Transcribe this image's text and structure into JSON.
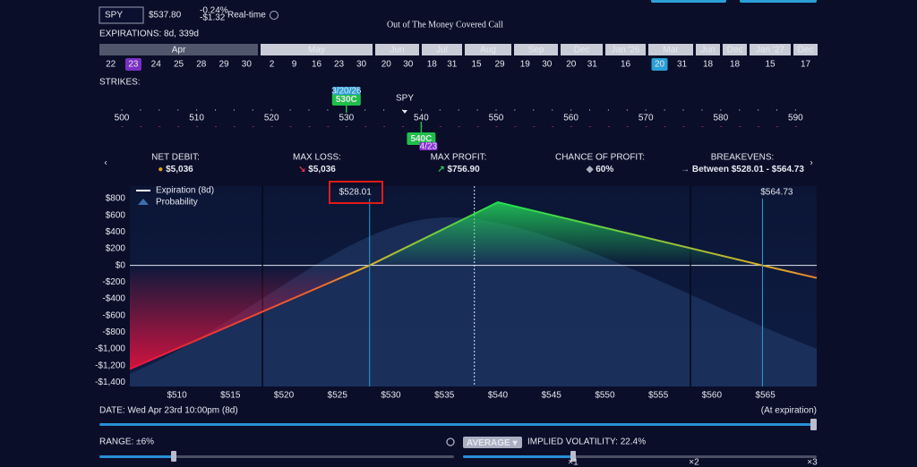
{
  "header": {
    "symbol": "SPY",
    "price": "$537.80",
    "change_pct": "-0.24%",
    "change": "-$1.32",
    "feed": "Real-time",
    "title": "Out of The Money Covered Call"
  },
  "expirations": {
    "label": "EXPIRATIONS: 8d, 339d",
    "months": [
      {
        "label": "Apr",
        "dates": [
          "22",
          "23",
          "24",
          "25",
          "28",
          "29",
          "30"
        ],
        "selected": 1,
        "selected_color": "#7b2fc4"
      },
      {
        "label": "May",
        "dates": [
          "2",
          "9",
          "16",
          "23",
          "30"
        ]
      },
      {
        "label": "Jun",
        "dates": [
          "20",
          "30"
        ]
      },
      {
        "label": "Jul",
        "dates": [
          "18",
          "31"
        ]
      },
      {
        "label": "Aug",
        "dates": [
          "15",
          "29"
        ]
      },
      {
        "label": "Sep",
        "dates": [
          "19",
          "30"
        ]
      },
      {
        "label": "Dec",
        "dates": [
          "20",
          "31"
        ]
      },
      {
        "label": "Jan '26",
        "dates": [
          "16"
        ]
      },
      {
        "label": "Mar",
        "dates": [
          "20",
          "31"
        ],
        "selected": 0,
        "selected_color": "#2a9fd6"
      },
      {
        "label": "Jun",
        "dates": [
          "18"
        ]
      },
      {
        "label": "Dec",
        "dates": [
          "18"
        ]
      },
      {
        "label": "Jan '27",
        "dates": [
          "15"
        ]
      },
      {
        "label": "Dec",
        "dates": [
          "17"
        ]
      }
    ]
  },
  "strikes": {
    "label": "STRIKES:",
    "ticks": [
      500,
      510,
      520,
      530,
      540,
      550,
      560,
      570,
      580,
      590
    ],
    "price": 537.8,
    "price_label": "SPY",
    "legs": [
      {
        "label": "530C",
        "strike": 530,
        "tag": "3/20/26",
        "side": "top"
      },
      {
        "label": "540C",
        "strike": 540,
        "tag": "4/23",
        "side": "bottom"
      }
    ]
  },
  "stats": [
    {
      "label": "NET DEBIT:",
      "value": "$5,036"
    },
    {
      "label": "MAX LOSS:",
      "value": "$5,036"
    },
    {
      "label": "MAX PROFIT:",
      "value": "$756.90"
    },
    {
      "label": "CHANCE OF PROFIT:",
      "value": "60%"
    },
    {
      "label": "BREAKEVENS:",
      "value": "Between $528.01 - $564.73"
    }
  ],
  "chart": {
    "type": "line",
    "legend": [
      "Expiration (8d)",
      "Probability"
    ],
    "x": [
      505.6,
      528.01,
      540,
      564.73,
      569.8
    ],
    "values": [
      -1240,
      0,
      756.9,
      0,
      -150
    ],
    "xlim": [
      505.6,
      569.8
    ],
    "ylim": [
      -1450,
      950
    ],
    "xticks": [
      {
        "value": 510,
        "label": "$510"
      },
      {
        "value": 515,
        "label": "$515"
      },
      {
        "value": 520,
        "label": "$520"
      },
      {
        "value": 525,
        "label": "$525"
      },
      {
        "value": 530,
        "label": "$530"
      },
      {
        "value": 535,
        "label": "$535"
      },
      {
        "value": 540,
        "label": "$540"
      },
      {
        "value": 545,
        "label": "$545"
      },
      {
        "value": 550,
        "label": "$550"
      },
      {
        "value": 555,
        "label": "$555"
      },
      {
        "value": 560,
        "label": "$560"
      },
      {
        "value": 565,
        "label": "$565"
      }
    ],
    "yticks": [
      {
        "value": 800,
        "label": "$800"
      },
      {
        "value": 600,
        "label": "$600"
      },
      {
        "value": 400,
        "label": "$400"
      },
      {
        "value": 200,
        "label": "$200"
      },
      {
        "value": 0,
        "label": "$0"
      },
      {
        "value": -200,
        "label": "-$200"
      },
      {
        "value": -400,
        "label": "-$400"
      },
      {
        "value": -600,
        "label": "-$600"
      },
      {
        "value": -800,
        "label": "-$800"
      },
      {
        "value": -1000,
        "label": "-$1,000"
      },
      {
        "value": -1200,
        "label": "-$1,200"
      },
      {
        "value": -1400,
        "label": "-$1,400"
      }
    ],
    "breakevens": [
      {
        "value": 528.01,
        "label": "$528.01"
      },
      {
        "value": 564.73,
        "label": "$564.73"
      }
    ],
    "price_line": 537.8,
    "range_lines": [
      518,
      558
    ]
  },
  "date": {
    "label": "DATE: Wed Apr 23rd 10:00pm (8d)",
    "note": "(At expiration)"
  },
  "range": {
    "label": "RANGE: ±6%"
  },
  "volatility": {
    "mode": "AVERAGE",
    "label": "IMPLIED VOLATILITY: 22.4%",
    "ticks": [
      "×1",
      "×2",
      "×3"
    ]
  }
}
